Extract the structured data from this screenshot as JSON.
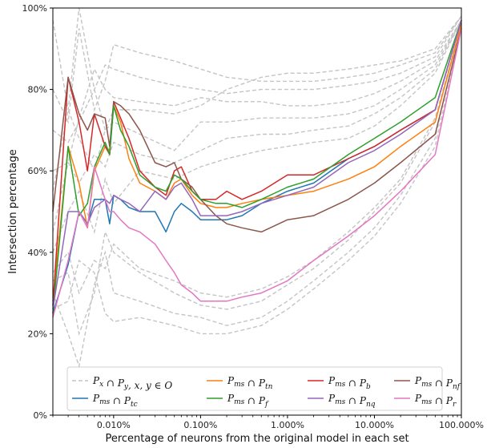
{
  "chart_data": {
    "type": "line",
    "xlabel": "Percentage of neurons from the original model in each set",
    "ylabel": "Intersection percentage",
    "x_scale": "log",
    "xlim": [
      0.002,
      100
    ],
    "ylim": [
      0,
      100
    ],
    "x_ticks": [
      {
        "value": 0.01,
        "label": "0.010%"
      },
      {
        "value": 0.1,
        "label": "0.100%"
      },
      {
        "value": 1,
        "label": "1.000%"
      },
      {
        "value": 10,
        "label": "10.000%"
      },
      {
        "value": 100,
        "label": "100.000%"
      }
    ],
    "y_ticks": [
      {
        "value": 0,
        "label": "0%"
      },
      {
        "value": 20,
        "label": "20%"
      },
      {
        "value": 40,
        "label": "40%"
      },
      {
        "value": 60,
        "label": "60%"
      },
      {
        "value": 80,
        "label": "80%"
      },
      {
        "value": 100,
        "label": "100%"
      }
    ],
    "grid": false,
    "legend": {
      "placement": "bottom",
      "entries": [
        {
          "key": "gray",
          "base": "P",
          "sub": "x",
          "op": " ∩ ",
          "base2": "P",
          "sub2": "y",
          "suffix": ", x, y ∈ O",
          "color": "#c4c4c4",
          "dash": true
        },
        {
          "key": "tn",
          "base": "P",
          "sub": "ms",
          "op": " ∩ ",
          "base2": "P",
          "sub2": "tn",
          "suffix": "",
          "color": "#ff7f0e",
          "dash": false
        },
        {
          "key": "b",
          "base": "P",
          "sub": "ms",
          "op": " ∩ ",
          "base2": "P",
          "sub2": "b",
          "suffix": "",
          "color": "#d62728",
          "dash": false
        },
        {
          "key": "nf",
          "base": "P",
          "sub": "ms",
          "op": " ∩ ",
          "base2": "P",
          "sub2": "nf",
          "suffix": "",
          "color": "#8c564b",
          "dash": false
        },
        {
          "key": "tc",
          "base": "P",
          "sub": "ms",
          "op": " ∩ ",
          "base2": "P",
          "sub2": "tc",
          "suffix": "",
          "color": "#1f77b4",
          "dash": false
        },
        {
          "key": "f",
          "base": "P",
          "sub": "ms",
          "op": " ∩ ",
          "base2": "P",
          "sub2": "f",
          "suffix": "",
          "color": "#2ca02c",
          "dash": false
        },
        {
          "key": "nq",
          "base": "P",
          "sub": "ms",
          "op": " ∩ ",
          "base2": "P",
          "sub2": "nq",
          "suffix": "",
          "color": "#9467bd",
          "dash": false
        },
        {
          "key": "r",
          "base": "P",
          "sub": "ms",
          "op": " ∩ ",
          "base2": "P",
          "sub2": "r",
          "suffix": "",
          "color": "#e377c2",
          "dash": false
        }
      ]
    },
    "series": [
      {
        "key": "tc",
        "color": "#1f77b4",
        "x": [
          0.002,
          0.003,
          0.004,
          0.005,
          0.006,
          0.008,
          0.009,
          0.01,
          0.012,
          0.015,
          0.02,
          0.03,
          0.04,
          0.05,
          0.06,
          0.08,
          0.1,
          0.15,
          0.2,
          0.3,
          0.5,
          1,
          2,
          5,
          10,
          20,
          50,
          100
        ],
        "y": [
          25,
          37,
          50,
          47,
          53,
          53,
          47,
          54,
          53,
          51,
          50,
          50,
          45,
          50,
          52,
          50,
          48,
          48,
          48,
          49,
          52,
          55,
          57,
          63,
          66,
          70,
          75,
          97
        ]
      },
      {
        "key": "tn",
        "color": "#ff7f0e",
        "x": [
          0.002,
          0.003,
          0.004,
          0.005,
          0.006,
          0.008,
          0.009,
          0.01,
          0.012,
          0.015,
          0.02,
          0.03,
          0.04,
          0.05,
          0.06,
          0.08,
          0.1,
          0.15,
          0.2,
          0.3,
          0.5,
          1,
          2,
          5,
          10,
          20,
          50,
          100
        ],
        "y": [
          28,
          66,
          57,
          46,
          60,
          66,
          65,
          76,
          72,
          63,
          57,
          55,
          53,
          57,
          58,
          54,
          52,
          51,
          51,
          52,
          53,
          54,
          55,
          58,
          61,
          66,
          72,
          96
        ]
      },
      {
        "key": "b",
        "color": "#d62728",
        "x": [
          0.002,
          0.003,
          0.004,
          0.005,
          0.006,
          0.008,
          0.009,
          0.01,
          0.012,
          0.015,
          0.02,
          0.03,
          0.04,
          0.05,
          0.06,
          0.08,
          0.1,
          0.15,
          0.2,
          0.3,
          0.5,
          1,
          2,
          5,
          10,
          20,
          50,
          100
        ],
        "y": [
          27,
          83,
          72,
          60,
          74,
          66,
          64,
          77,
          73,
          68,
          60,
          56,
          54,
          60,
          61,
          55,
          53,
          53,
          55,
          53,
          55,
          59,
          59,
          63,
          66,
          70,
          75,
          97
        ]
      },
      {
        "key": "nf",
        "color": "#8c564b",
        "x": [
          0.002,
          0.003,
          0.004,
          0.005,
          0.006,
          0.008,
          0.009,
          0.01,
          0.012,
          0.015,
          0.02,
          0.03,
          0.04,
          0.05,
          0.06,
          0.08,
          0.1,
          0.15,
          0.2,
          0.3,
          0.5,
          1,
          2,
          5,
          10,
          20,
          50,
          100
        ],
        "y": [
          50,
          83,
          74,
          70,
          74,
          73,
          66,
          77,
          76,
          74,
          70,
          62,
          61,
          62,
          58,
          56,
          53,
          49,
          47,
          46,
          45,
          48,
          49,
          53,
          57,
          62,
          69,
          95
        ]
      },
      {
        "key": "f",
        "color": "#2ca02c",
        "x": [
          0.002,
          0.003,
          0.004,
          0.005,
          0.006,
          0.008,
          0.009,
          0.01,
          0.012,
          0.015,
          0.02,
          0.03,
          0.04,
          0.05,
          0.06,
          0.08,
          0.1,
          0.15,
          0.2,
          0.3,
          0.5,
          1,
          2,
          5,
          10,
          20,
          50,
          100
        ],
        "y": [
          25,
          66,
          49,
          52,
          61,
          67,
          64,
          76,
          70,
          66,
          59,
          56,
          55,
          59,
          58,
          55,
          53,
          52,
          52,
          51,
          53,
          56,
          58,
          64,
          68,
          72,
          78,
          97
        ]
      },
      {
        "key": "nq",
        "color": "#9467bd",
        "x": [
          0.002,
          0.003,
          0.004,
          0.005,
          0.006,
          0.008,
          0.009,
          0.01,
          0.012,
          0.015,
          0.02,
          0.03,
          0.04,
          0.05,
          0.06,
          0.08,
          0.1,
          0.15,
          0.2,
          0.3,
          0.5,
          1,
          2,
          5,
          10,
          20,
          50,
          100
        ],
        "y": [
          26,
          50,
          50,
          47,
          51,
          53,
          52,
          54,
          53,
          52,
          50,
          55,
          53,
          56,
          57,
          53,
          49,
          49,
          49,
          50,
          52,
          54,
          56,
          62,
          65,
          69,
          75,
          97
        ]
      },
      {
        "key": "r",
        "color": "#e377c2",
        "x": [
          0.002,
          0.003,
          0.004,
          0.005,
          0.006,
          0.008,
          0.009,
          0.01,
          0.012,
          0.015,
          0.02,
          0.03,
          0.04,
          0.05,
          0.06,
          0.08,
          0.1,
          0.15,
          0.2,
          0.3,
          0.5,
          1,
          2,
          5,
          10,
          20,
          50,
          100
        ],
        "y": [
          24,
          38,
          50,
          46,
          61,
          53,
          50,
          50,
          48,
          46,
          45,
          42,
          38,
          35,
          32,
          30,
          28,
          28,
          28,
          29,
          30,
          33,
          38,
          44,
          49,
          55,
          64,
          95
        ]
      }
    ],
    "gray_series": [
      {
        "x": [
          0.002,
          0.003,
          0.004,
          0.006,
          0.008,
          0.01,
          0.02,
          0.05,
          0.1,
          0.2,
          0.5,
          1,
          2,
          5,
          10,
          20,
          50,
          100
        ],
        "y": [
          97,
          75,
          100,
          80,
          70,
          75,
          75,
          74,
          76,
          80,
          83,
          84,
          84,
          85,
          86,
          87,
          90,
          98
        ]
      },
      {
        "x": [
          0.002,
          0.003,
          0.004,
          0.006,
          0.008,
          0.01,
          0.02,
          0.05,
          0.1,
          0.2,
          0.5,
          1,
          2,
          5,
          10,
          20,
          50,
          100
        ],
        "y": [
          80,
          72,
          95,
          75,
          82,
          91,
          89,
          87,
          85,
          83,
          82,
          82,
          82,
          83,
          84,
          86,
          89,
          98
        ]
      },
      {
        "x": [
          0.002,
          0.003,
          0.004,
          0.006,
          0.008,
          0.01,
          0.02,
          0.05,
          0.1,
          0.2,
          0.5,
          1,
          2,
          5,
          10,
          20,
          50,
          100
        ],
        "y": [
          70,
          67,
          72,
          80,
          86,
          85,
          83,
          81,
          80,
          79,
          80,
          80,
          80,
          81,
          82,
          84,
          88,
          98
        ]
      },
      {
        "x": [
          0.002,
          0.003,
          0.004,
          0.006,
          0.008,
          0.01,
          0.02,
          0.05,
          0.1,
          0.2,
          0.5,
          1,
          2,
          5,
          10,
          20,
          50,
          100
        ],
        "y": [
          60,
          62,
          73,
          85,
          80,
          78,
          77,
          76,
          78,
          77,
          77,
          76,
          76,
          77,
          79,
          82,
          87,
          97
        ]
      },
      {
        "x": [
          0.002,
          0.003,
          0.004,
          0.006,
          0.008,
          0.01,
          0.02,
          0.05,
          0.1,
          0.2,
          0.5,
          1,
          2,
          5,
          10,
          20,
          50,
          100
        ],
        "y": [
          55,
          75,
          68,
          60,
          70,
          72,
          69,
          65,
          72,
          72,
          73,
          73,
          73,
          74,
          76,
          80,
          86,
          97
        ]
      },
      {
        "x": [
          0.002,
          0.003,
          0.004,
          0.006,
          0.008,
          0.01,
          0.02,
          0.05,
          0.1,
          0.2,
          0.5,
          1,
          2,
          5,
          10,
          20,
          50,
          100
        ],
        "y": [
          45,
          62,
          57,
          64,
          61,
          67,
          64,
          62,
          65,
          68,
          69,
          69,
          70,
          71,
          74,
          78,
          85,
          97
        ]
      },
      {
        "x": [
          0.002,
          0.003,
          0.004,
          0.006,
          0.008,
          0.01,
          0.02,
          0.05,
          0.1,
          0.2,
          0.5,
          1,
          2,
          5,
          10,
          20,
          50,
          100
        ],
        "y": [
          40,
          50,
          55,
          45,
          58,
          52,
          60,
          58,
          61,
          63,
          65,
          66,
          67,
          68,
          71,
          76,
          84,
          97
        ]
      },
      {
        "x": [
          0.002,
          0.003,
          0.004,
          0.006,
          0.008,
          0.01,
          0.02,
          0.05,
          0.1,
          0.2,
          0.5,
          1,
          2,
          5,
          10,
          20,
          50,
          100
        ],
        "y": [
          33,
          35,
          20,
          30,
          45,
          40,
          35,
          30,
          27,
          26,
          28,
          32,
          36,
          43,
          50,
          57,
          72,
          96
        ]
      },
      {
        "x": [
          0.002,
          0.003,
          0.004,
          0.006,
          0.008,
          0.01,
          0.02,
          0.05,
          0.1,
          0.2,
          0.5,
          1,
          2,
          5,
          10,
          20,
          50,
          100
        ],
        "y": [
          30,
          20,
          12,
          32,
          40,
          30,
          28,
          25,
          24,
          22,
          24,
          28,
          33,
          40,
          46,
          54,
          68,
          96
        ]
      },
      {
        "x": [
          0.002,
          0.003,
          0.004,
          0.006,
          0.008,
          0.01,
          0.02,
          0.05,
          0.1,
          0.2,
          0.5,
          1,
          2,
          5,
          10,
          20,
          50,
          100
        ],
        "y": [
          26,
          28,
          38,
          35,
          25,
          23,
          24,
          22,
          20,
          20,
          22,
          26,
          31,
          38,
          44,
          52,
          66,
          95
        ]
      },
      {
        "x": [
          0.002,
          0.003,
          0.004,
          0.006,
          0.008,
          0.01,
          0.02,
          0.05,
          0.1,
          0.2,
          0.5,
          1,
          2,
          5,
          10,
          20,
          50,
          100
        ],
        "y": [
          35,
          40,
          30,
          38,
          36,
          42,
          36,
          33,
          30,
          29,
          31,
          34,
          38,
          45,
          51,
          58,
          73,
          96
        ]
      }
    ]
  }
}
